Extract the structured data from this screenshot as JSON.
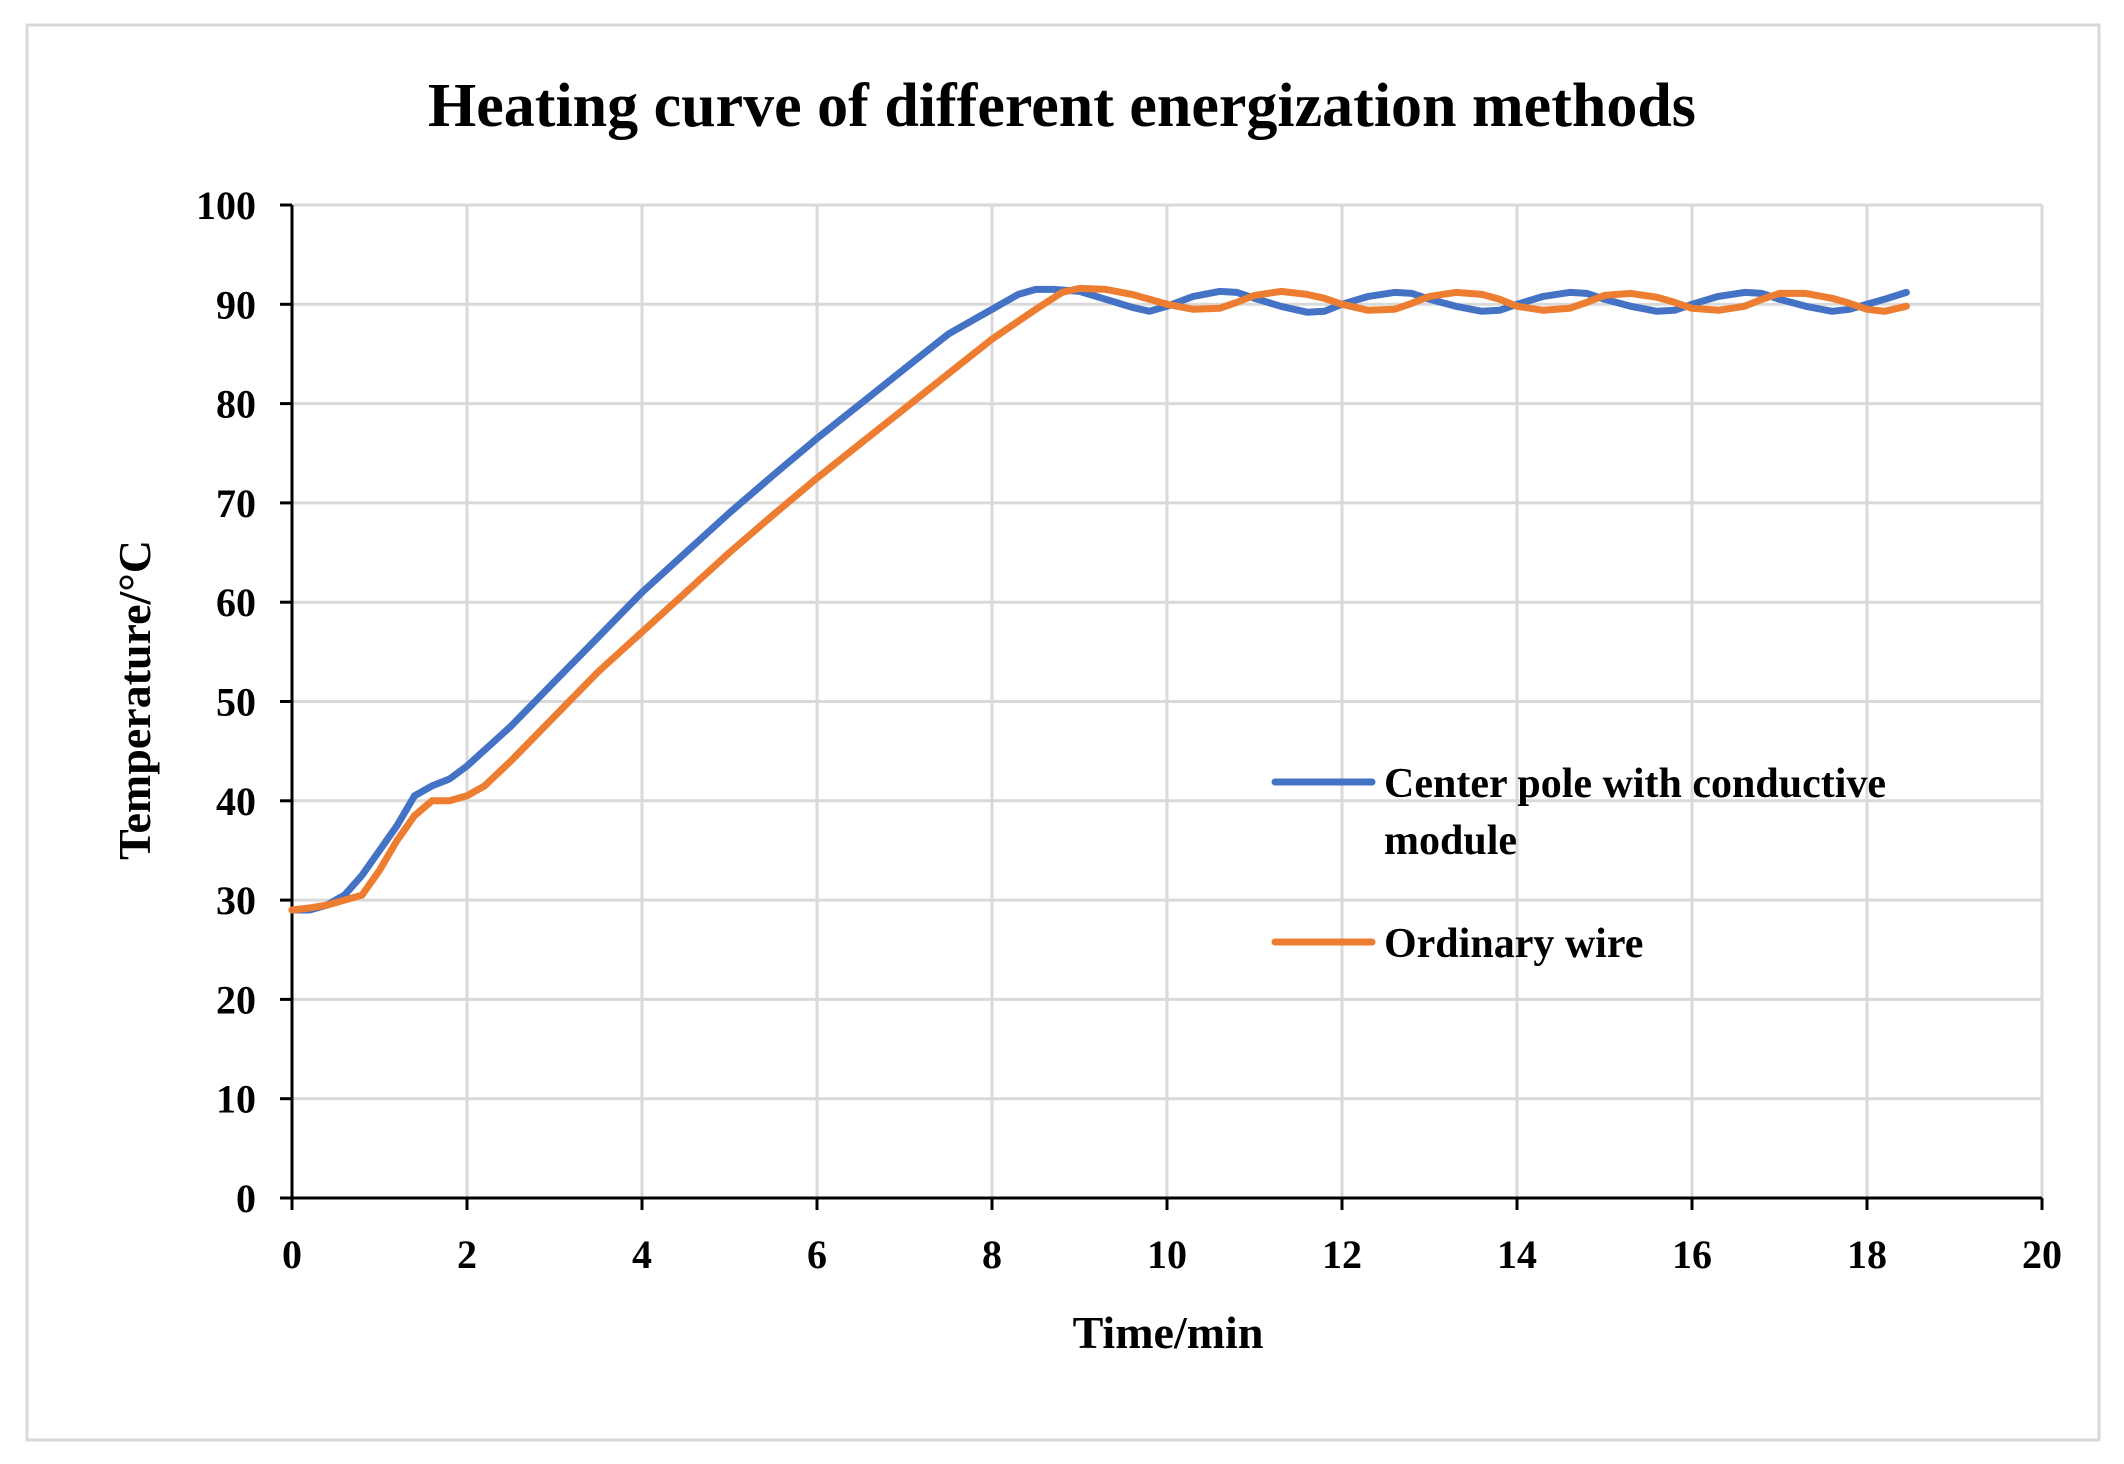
{
  "chart_data": {
    "type": "line",
    "title": "Heating curve of different energization methods",
    "xlabel": "Time/min",
    "ylabel": "Temperature/°C",
    "xlim": [
      0,
      20
    ],
    "ylim": [
      0,
      100
    ],
    "xticks": [
      "0",
      "2",
      "4",
      "6",
      "8",
      "10",
      "12",
      "14",
      "16",
      "18",
      "20"
    ],
    "yticks": [
      "0",
      "10",
      "20",
      "30",
      "40",
      "50",
      "60",
      "70",
      "80",
      "90",
      "100"
    ],
    "grid": true,
    "legend_position": "center-right",
    "legend_lines": {
      "series_0": [
        "Center pole with conductive",
        "module"
      ],
      "series_1": [
        "Ordinary wire"
      ]
    },
    "series": [
      {
        "name": "Center pole with conductive module",
        "color": "#4472C4",
        "x": [
          0,
          0.2,
          0.4,
          0.6,
          0.8,
          1.0,
          1.2,
          1.4,
          1.6,
          1.8,
          2.0,
          2.5,
          3.0,
          3.5,
          4.0,
          4.5,
          5.0,
          5.5,
          6.0,
          6.5,
          7.0,
          7.5,
          8.0,
          8.3,
          8.5,
          8.7,
          9.0,
          9.3,
          9.6,
          9.8,
          10.0,
          10.3,
          10.6,
          10.8,
          11.0,
          11.3,
          11.6,
          11.8,
          12.0,
          12.3,
          12.6,
          12.8,
          13.0,
          13.3,
          13.6,
          13.8,
          14.0,
          14.3,
          14.6,
          14.8,
          15.0,
          15.3,
          15.6,
          15.8,
          16.0,
          16.3,
          16.6,
          16.8,
          17.0,
          17.3,
          17.6,
          17.8,
          18.0,
          18.2,
          18.45
        ],
        "values": [
          29,
          29,
          29.5,
          30.5,
          32.5,
          35,
          37.5,
          40.5,
          41.5,
          42.2,
          43.5,
          47.5,
          52,
          56.5,
          61,
          65,
          69,
          72.8,
          76.5,
          80,
          83.5,
          87,
          89.5,
          91,
          91.5,
          91.5,
          91.3,
          90.5,
          89.7,
          89.3,
          89.8,
          90.8,
          91.3,
          91.2,
          90.6,
          89.8,
          89.2,
          89.3,
          90,
          90.8,
          91.2,
          91.1,
          90.5,
          89.8,
          89.3,
          89.4,
          90,
          90.8,
          91.2,
          91.1,
          90.5,
          89.8,
          89.3,
          89.4,
          90,
          90.8,
          91.2,
          91.1,
          90.5,
          89.8,
          89.3,
          89.5,
          90,
          90.5,
          91.2
        ]
      },
      {
        "name": "Ordinary wire",
        "color": "#ED7D31",
        "x": [
          0,
          0.2,
          0.4,
          0.6,
          0.8,
          1.0,
          1.2,
          1.4,
          1.6,
          1.7,
          1.8,
          2.0,
          2.2,
          2.5,
          3.0,
          3.5,
          4.0,
          4.5,
          5.0,
          5.5,
          6.0,
          6.5,
          7.0,
          7.5,
          8.0,
          8.5,
          8.8,
          9.0,
          9.3,
          9.6,
          9.8,
          10.0,
          10.3,
          10.6,
          10.8,
          11.0,
          11.3,
          11.6,
          11.8,
          12.0,
          12.3,
          12.6,
          12.8,
          13.0,
          13.3,
          13.6,
          13.8,
          14.0,
          14.3,
          14.6,
          14.8,
          15.0,
          15.3,
          15.6,
          15.8,
          16.0,
          16.3,
          16.6,
          16.8,
          17.0,
          17.3,
          17.6,
          17.8,
          18.0,
          18.2,
          18.45
        ],
        "values": [
          29,
          29.2,
          29.5,
          30,
          30.5,
          33,
          36,
          38.5,
          40,
          40,
          40,
          40.5,
          41.5,
          44,
          48.5,
          53,
          57,
          61,
          65,
          68.8,
          72.5,
          76,
          79.5,
          83,
          86.5,
          89.5,
          91.2,
          91.6,
          91.5,
          91,
          90.5,
          90,
          89.5,
          89.6,
          90.2,
          90.9,
          91.3,
          91,
          90.6,
          90,
          89.4,
          89.5,
          90.1,
          90.8,
          91.2,
          91,
          90.5,
          89.8,
          89.4,
          89.6,
          90.2,
          90.9,
          91.1,
          90.7,
          90.2,
          89.6,
          89.4,
          89.8,
          90.5,
          91.1,
          91.1,
          90.6,
          90.1,
          89.5,
          89.3,
          89.8
        ]
      }
    ]
  }
}
